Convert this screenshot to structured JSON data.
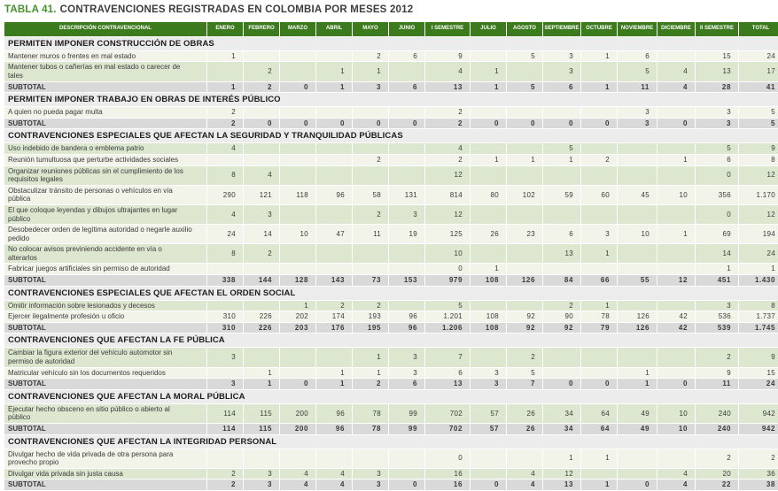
{
  "title": {
    "prefix": "TABLA 41.",
    "text": "CONTRAVENCIONES REGISTRADAS EN COLOMBIA POR MESES 2012"
  },
  "colors": {
    "header_green": "#3c7a1e",
    "title_green": "#45922a",
    "row_green": "#dde7d0",
    "row_light": "#f2f4ea",
    "subtotal_gray": "#d9d9d9",
    "section_bg": "#ececec"
  },
  "table": {
    "description_header": "DESCRIPCIÓN CONTRAVENCIONAL",
    "columns": [
      "ENERO",
      "FEBRERO",
      "MARZO",
      "ABRIL",
      "MAYO",
      "JUNIO",
      "I SEMESTRE",
      "JULIO",
      "AGOSTO",
      "SEPTIEMBRE",
      "OCTUBRE",
      "NOVIEMBRE",
      "DICIEMBRE",
      "II SEMESTRE",
      "TOTAL"
    ],
    "subtotal_label": "SUBTOTAL",
    "sections": [
      {
        "title": "PERMITEN IMPONER CONSTRUCCIÓN DE OBRAS",
        "rows": [
          {
            "label": "Mantener muros o frentes en mal estado",
            "values": [
              "1",
              "",
              "",
              "",
              "2",
              "6",
              "9",
              "",
              "5",
              "3",
              "1",
              "6",
              "",
              "15",
              "24"
            ]
          },
          {
            "label": "Mantener tubos o cañerías en mal estado o carecer de tales",
            "values": [
              "",
              "2",
              "",
              "1",
              "1",
              "",
              "4",
              "1",
              "",
              "3",
              "",
              "5",
              "4",
              "13",
              "17"
            ]
          }
        ],
        "subtotal": [
          "1",
          "2",
          "0",
          "1",
          "3",
          "6",
          "13",
          "1",
          "5",
          "6",
          "1",
          "11",
          "4",
          "28",
          "41"
        ]
      },
      {
        "title": "PERMITEN IMPONER TRABAJO EN OBRAS DE INTERÉS PÚBLICO",
        "rows": [
          {
            "label": "A quien no pueda pagar multa",
            "values": [
              "2",
              "",
              "",
              "",
              "",
              "",
              "2",
              "",
              "",
              "",
              "",
              "3",
              "",
              "3",
              "5"
            ]
          }
        ],
        "subtotal": [
          "2",
          "0",
          "0",
          "0",
          "0",
          "0",
          "2",
          "0",
          "0",
          "0",
          "0",
          "3",
          "0",
          "3",
          "5"
        ]
      },
      {
        "title": "CONTRAVENCIONES ESPECIALES QUE AFECTAN LA SEGURIDAD Y TRANQUILIDAD PÚBLICAS",
        "rows": [
          {
            "label": "Uso indebido de bandera o emblema patrio",
            "values": [
              "4",
              "",
              "",
              "",
              "",
              "",
              "4",
              "",
              "",
              "5",
              "",
              "",
              "",
              "5",
              "9"
            ]
          },
          {
            "label": "Reunión tumultuosa que perturbe actividades sociales",
            "values": [
              "",
              "",
              "",
              "",
              "2",
              "",
              "2",
              "1",
              "1",
              "1",
              "2",
              "",
              "1",
              "6",
              "8"
            ]
          },
          {
            "label": "Organizar reuniones públicas sin el cumplimiento de los requisitos legales",
            "values": [
              "8",
              "4",
              "",
              "",
              "",
              "",
              "12",
              "",
              "",
              "",
              "",
              "",
              "",
              "0",
              "12"
            ]
          },
          {
            "label": "Obstaculizar tránsito de personas o vehículos en vía pública",
            "values": [
              "290",
              "121",
              "118",
              "96",
              "58",
              "131",
              "814",
              "80",
              "102",
              "59",
              "60",
              "45",
              "10",
              "356",
              "1.170"
            ]
          },
          {
            "label": "El que coloque leyendas y dibujos ultrajantes en lugar público",
            "values": [
              "4",
              "3",
              "",
              "",
              "2",
              "3",
              "12",
              "",
              "",
              "",
              "",
              "",
              "",
              "0",
              "12"
            ]
          },
          {
            "label": "Desobedecer orden de legítima autoridad o negarle auxilio pedido",
            "values": [
              "24",
              "14",
              "10",
              "47",
              "11",
              "19",
              "125",
              "26",
              "23",
              "6",
              "3",
              "10",
              "1",
              "69",
              "194"
            ]
          },
          {
            "label": "No colocar avisos previniendo accidente en vía o alterarlos",
            "values": [
              "8",
              "2",
              "",
              "",
              "",
              "",
              "10",
              "",
              "",
              "13",
              "1",
              "",
              "",
              "14",
              "24"
            ]
          },
          {
            "label": "Fabricar juegos artificiales sin permiso de autoridad",
            "values": [
              "",
              "",
              "",
              "",
              "",
              "",
              "0",
              "1",
              "",
              "",
              "",
              "",
              "",
              "1",
              "1"
            ]
          }
        ],
        "subtotal": [
          "338",
          "144",
          "128",
          "143",
          "73",
          "153",
          "979",
          "108",
          "126",
          "84",
          "66",
          "55",
          "12",
          "451",
          "1.430"
        ]
      },
      {
        "title": "CONTRAVENCIONES ESPECIALES QUE AFECTAN EL ORDEN SOCIAL",
        "rows": [
          {
            "label": "Omitir información sobre lesionados y decesos",
            "values": [
              "",
              "",
              "1",
              "2",
              "2",
              "",
              "5",
              "",
              "",
              "2",
              "1",
              "",
              "",
              "3",
              "8"
            ]
          },
          {
            "label": "Ejercer ilegalmente profesión u oficio",
            "values": [
              "310",
              "226",
              "202",
              "174",
              "193",
              "96",
              "1.201",
              "108",
              "92",
              "90",
              "78",
              "126",
              "42",
              "536",
              "1.737"
            ]
          }
        ],
        "subtotal": [
          "310",
          "226",
          "203",
          "176",
          "195",
          "96",
          "1.206",
          "108",
          "92",
          "92",
          "79",
          "126",
          "42",
          "539",
          "1.745"
        ]
      },
      {
        "title": "CONTRAVENCIONES QUE AFECTAN LA FE PÚBLICA",
        "rows": [
          {
            "label": "Cambiar la figura exterior del vehículo automotor sin permiso de autoridad",
            "values": [
              "3",
              "",
              "",
              "",
              "1",
              "3",
              "7",
              "",
              "2",
              "",
              "",
              "",
              "",
              "2",
              "9"
            ]
          },
          {
            "label": "Matricular vehículo sin los documentos requeridos",
            "values": [
              "",
              "1",
              "",
              "1",
              "1",
              "3",
              "6",
              "3",
              "5",
              "",
              "",
              "1",
              "",
              "9",
              "15"
            ]
          }
        ],
        "subtotal": [
          "3",
          "1",
          "0",
          "1",
          "2",
          "6",
          "13",
          "3",
          "7",
          "0",
          "0",
          "1",
          "0",
          "11",
          "24"
        ]
      },
      {
        "title": "CONTRAVENCIONES QUE AFECTAN LA MORAL PÚBLICA",
        "rows": [
          {
            "label": "Ejecutar hecho obsceno en sitio público o abierto al público",
            "values": [
              "114",
              "115",
              "200",
              "96",
              "78",
              "99",
              "702",
              "57",
              "26",
              "34",
              "64",
              "49",
              "10",
              "240",
              "942"
            ]
          }
        ],
        "subtotal": [
          "114",
          "115",
          "200",
          "96",
          "78",
          "99",
          "702",
          "57",
          "26",
          "34",
          "64",
          "49",
          "10",
          "240",
          "942"
        ]
      },
      {
        "title": "CONTRAVENCIONES QUE AFECTAN LA INTEGRIDAD PERSONAL",
        "rows": [
          {
            "label": "Divulgar hecho de vida privada de otra persona para provecho propio",
            "values": [
              "",
              "",
              "",
              "",
              "",
              "",
              "0",
              "",
              "",
              "1",
              "1",
              "",
              "",
              "2",
              "2"
            ]
          },
          {
            "label": "Divulgar vida privada sin justa causa",
            "values": [
              "2",
              "3",
              "4",
              "4",
              "3",
              "",
              "16",
              "",
              "4",
              "12",
              "",
              "",
              "4",
              "20",
              "36"
            ]
          }
        ],
        "subtotal": [
          "2",
          "3",
          "4",
          "4",
          "3",
          "0",
          "16",
          "0",
          "4",
          "13",
          "1",
          "0",
          "4",
          "22",
          "38"
        ]
      }
    ]
  }
}
